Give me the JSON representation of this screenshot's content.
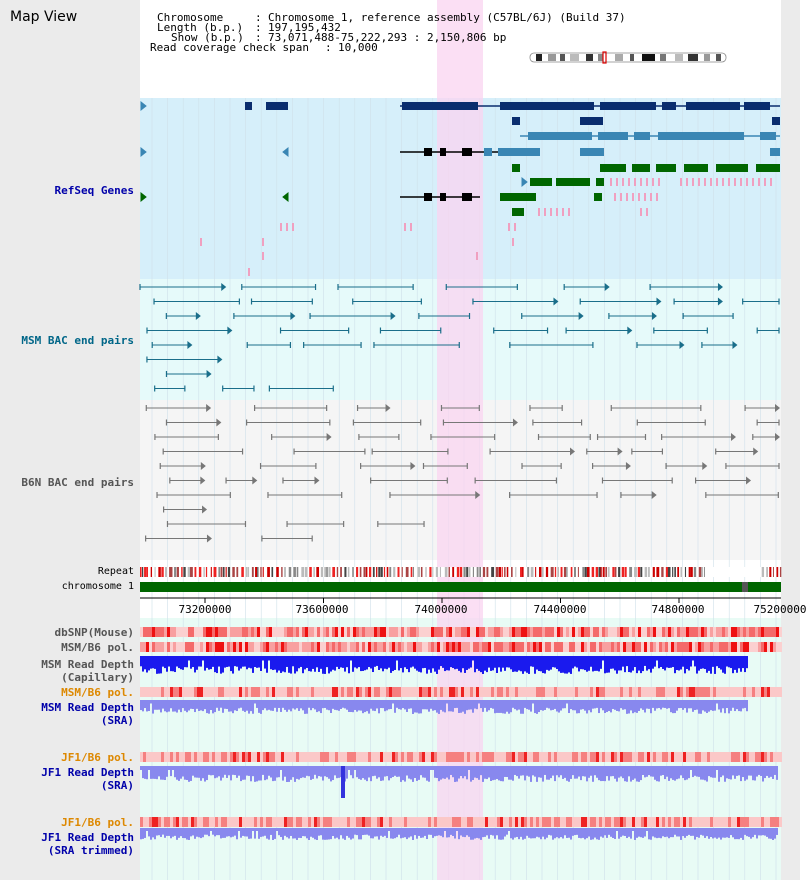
{
  "header": {
    "title": "Map View",
    "info_keys": [
      "Chromosome",
      "Length (b.p.)",
      "Show (b.p.)"
    ],
    "chromosome": "Chromosome 1, reference assembly (C57BL/6J) (Build 37)",
    "length": "197,195,432",
    "show": "73,071,488-75,222,293 : 2,150,806 bp",
    "coverage_key": "Read coverage check span",
    "coverage": "10,000"
  },
  "tracks": {
    "refseq": "RefSeq Genes",
    "msm_bac": "MSM BAC end pairs",
    "b6n_bac": "B6N BAC end pairs",
    "repeat": "Repeat",
    "chromosome": "chromosome 1",
    "dbsnp": "dbSNP(Mouse)",
    "msm_b6_pol": "MSM/B6 pol.",
    "msm_read_depth_cap": "MSM Read Depth",
    "msm_read_depth_cap_sub": "(Capillary)",
    "msm_b6_pol_2": "MSM/B6 pol.",
    "msm_read_depth_sra": "MSM Read Depth",
    "msm_read_depth_sra_sub": "(SRA)",
    "jf1_b6_pol": "JF1/B6 pol.",
    "jf1_read_depth_sra": "JF1 Read Depth",
    "jf1_read_depth_sra_sub": "(SRA)",
    "jf1_b6_pol_2": "JF1/B6 pol.",
    "jf1_read_depth_trim": "JF1 Read Depth",
    "jf1_read_depth_trim_sub": "(SRA trimmed)"
  },
  "axis": {
    "ticks": [
      "73200000",
      "73600000",
      "74000000",
      "74400000",
      "74800000",
      "75200000"
    ]
  },
  "colors": {
    "refseq_bg": "#d6effa",
    "msm_bg": "#e6fafa",
    "b6n_bg": "#f5f5f5",
    "highlight": "#f9d4f0",
    "refseq_label": "#0000aa",
    "msm_label": "#006688",
    "b6n_label": "#555555",
    "pol_label": "#dd8800",
    "depth_label": "#0000aa",
    "gene_dark": "#0a2d6e",
    "gene_mid": "#3a86b4",
    "gene_green": "#006600",
    "depth_blue": "#1a1aee",
    "depth_light": "#8888ee",
    "chrom_green": "#006600"
  }
}
